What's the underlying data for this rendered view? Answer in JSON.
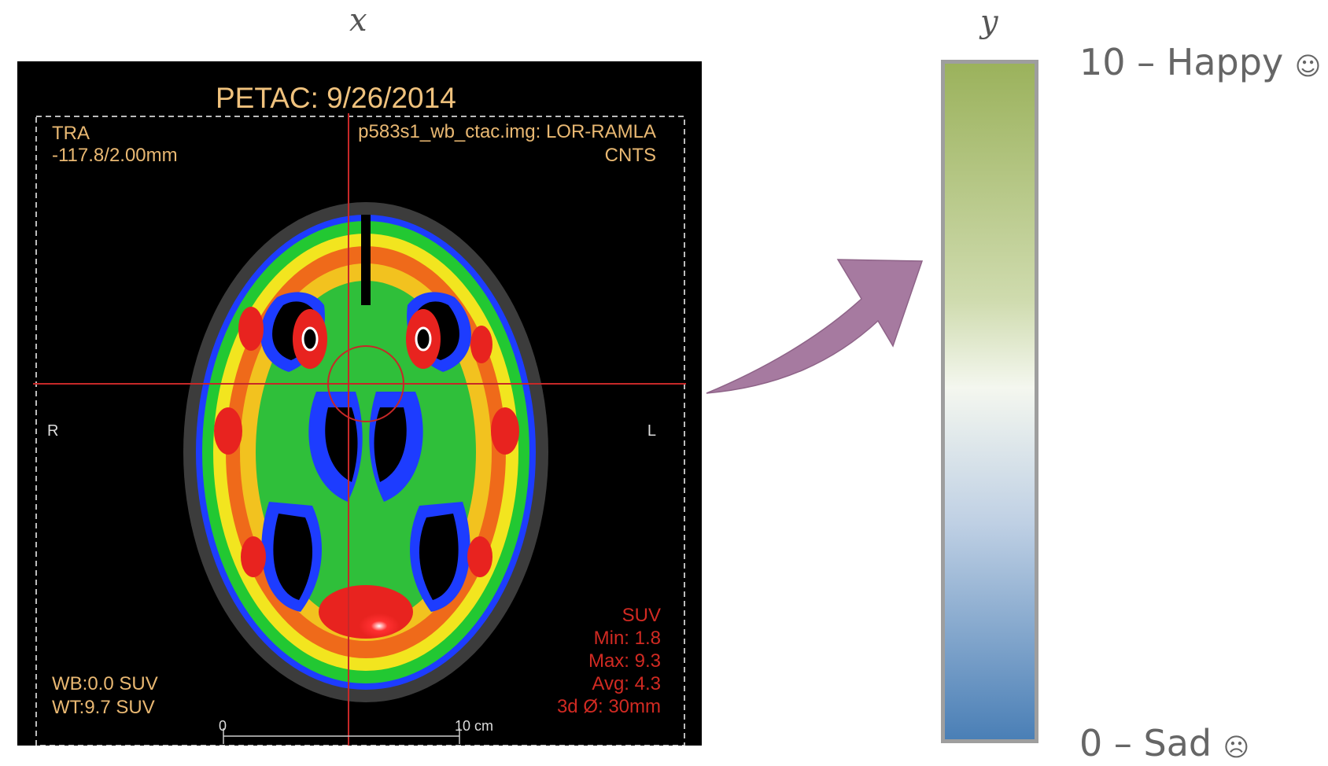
{
  "labels": {
    "x": "x",
    "y": "y"
  },
  "pet_scan": {
    "title": "PETAC:   9/26/2014",
    "orientation": "TRA",
    "slice": "-117.8/2.00mm",
    "file": "p583s1_wb_ctac.img: LOR-RAMLA",
    "counts": "CNTS",
    "right_marker": "R",
    "left_marker": "L",
    "wb": "WB:0.0 SUV",
    "wt": "WT:9.7 SUV",
    "stats": {
      "unit": "SUV",
      "min": "Min: 1.8",
      "max": "Max: 9.3",
      "avg": "Avg: 4.3",
      "roi": "3d Ø: 30mm"
    },
    "scale_zero": "0",
    "scale_ten": "10 cm"
  },
  "scale": {
    "top_label": "10 – Happy",
    "top_icon": "☺",
    "bottom_label": "0 – Sad",
    "bottom_icon": "☹",
    "top_color": "#9bb25c",
    "middle_color": "#f4f7ef",
    "bottom_color": "#4a7fb6"
  },
  "arrow": {
    "color": "#a67aa0",
    "icon": "curved-arrow-icon"
  }
}
